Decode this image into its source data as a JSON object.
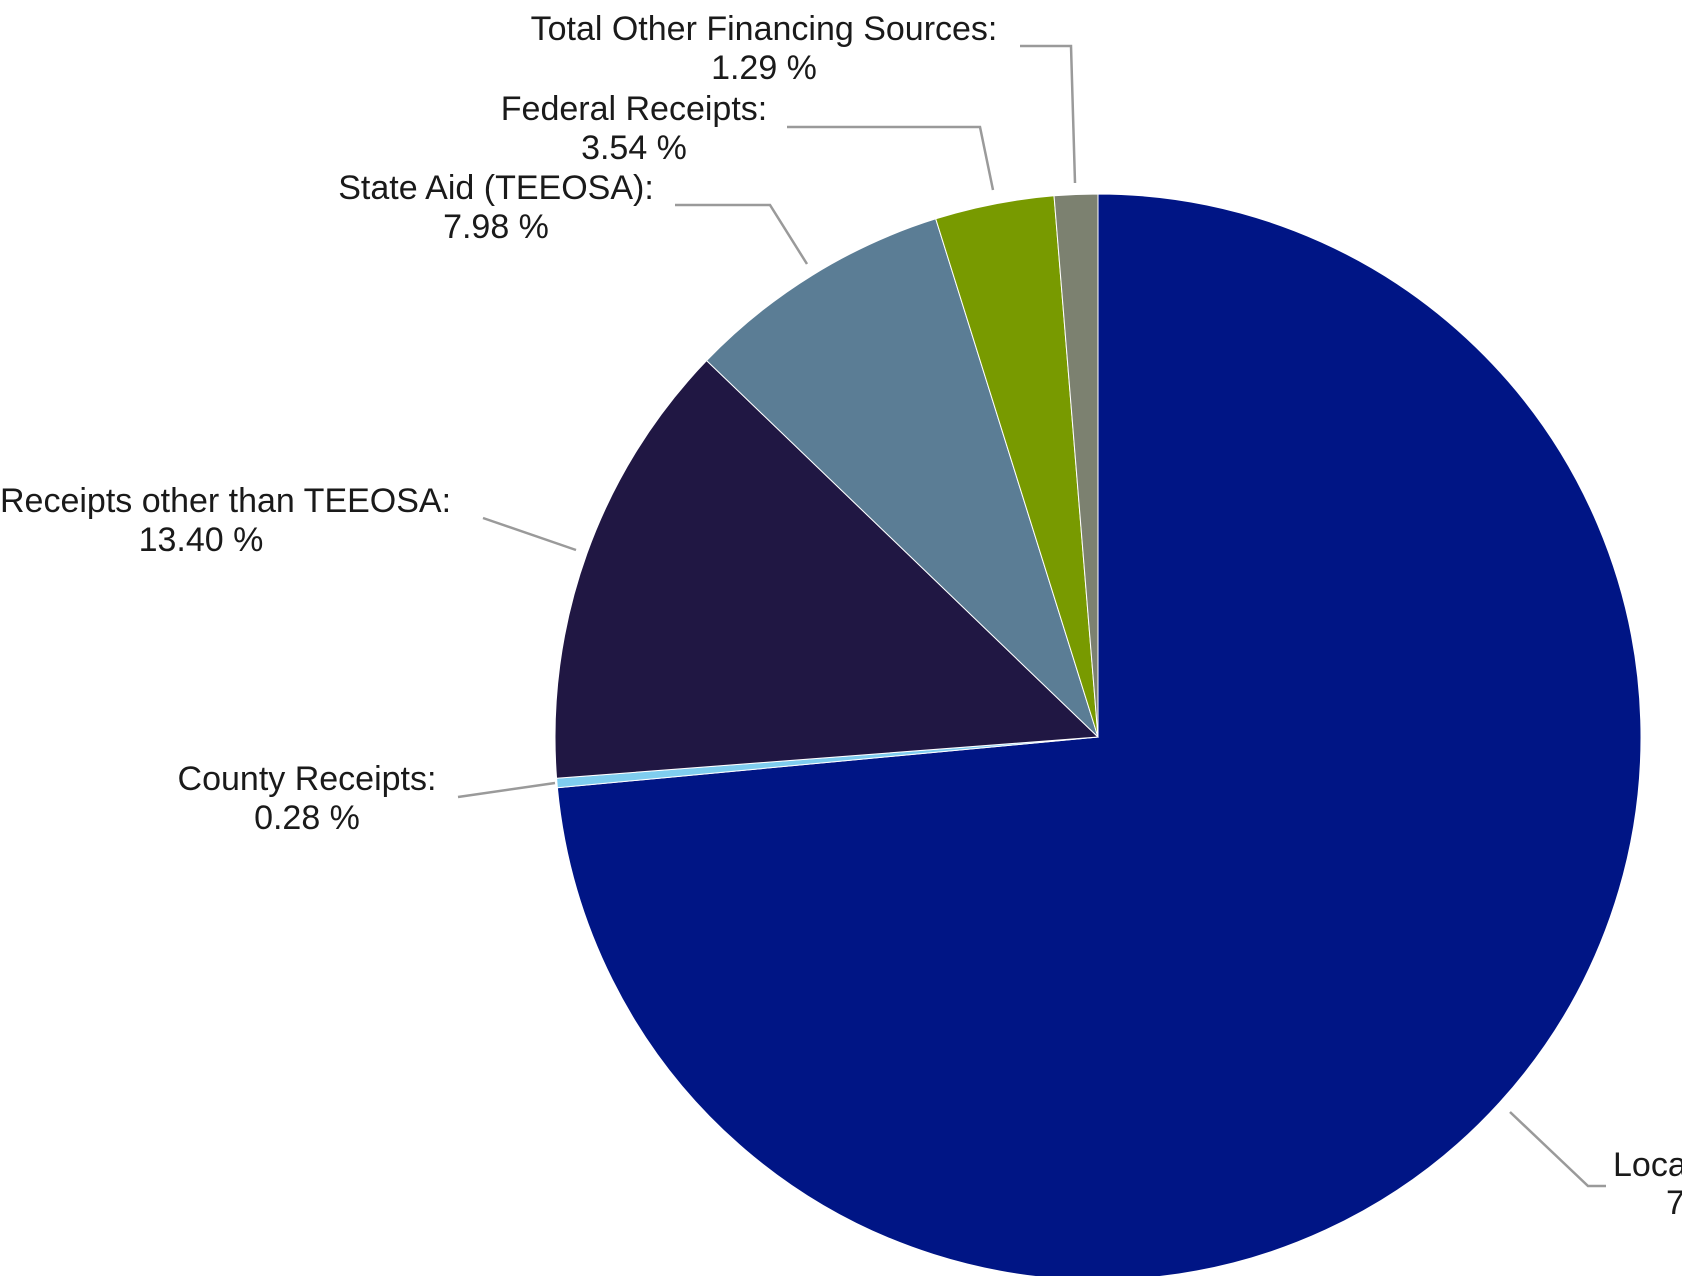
{
  "chart_data": {
    "type": "pie",
    "title": "",
    "slices": [
      {
        "label": "Local",
        "name_text": "Loca",
        "pct_text": "7",
        "value": 73.51,
        "color": "#001585"
      },
      {
        "label": "County Receipts",
        "name_text": "County Receipts:",
        "pct_text": "0.28 %",
        "value": 0.28,
        "color": "#7fcdef"
      },
      {
        "label": "Receipts other than TEEOSA",
        "name_text": "Receipts other than TEEOSA:",
        "pct_text": "13.40 %",
        "value": 13.4,
        "color": "#201743"
      },
      {
        "label": "State Aid (TEEOSA)",
        "name_text": "State Aid (TEEOSA):",
        "pct_text": "7.98 %",
        "value": 7.98,
        "color": "#5b7d95"
      },
      {
        "label": "Federal Receipts",
        "name_text": "Federal Receipts:",
        "pct_text": "3.54 %",
        "value": 3.54,
        "color": "#789a00"
      },
      {
        "label": "Total Other Financing Sources",
        "name_text": "Total Other Financing Sources:",
        "pct_text": "1.29 %",
        "value": 1.29,
        "color": "#7c8170"
      }
    ]
  }
}
